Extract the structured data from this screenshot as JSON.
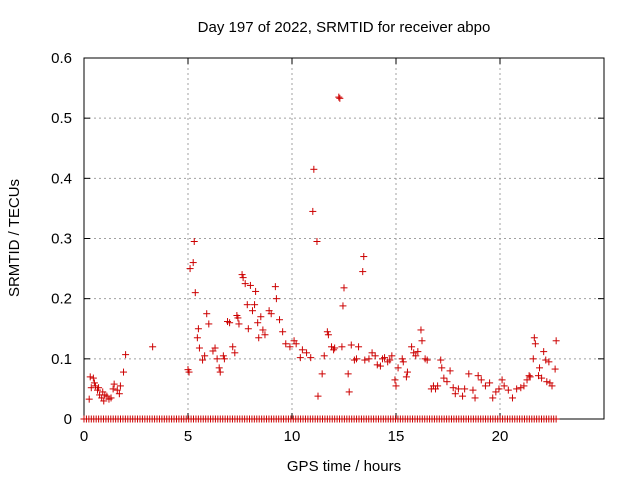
{
  "chart_data": {
    "type": "scatter",
    "title": "Day 197 of 2022, SRMTID for receiver abpo",
    "xlabel": "GPS time / hours",
    "ylabel": "SRMTID / TECUs",
    "xlim": [
      0,
      25
    ],
    "ylim": [
      0,
      0.6
    ],
    "xticks": [
      0,
      5,
      10,
      15,
      20
    ],
    "yticks": [
      0,
      0.1,
      0.2,
      0.3,
      0.4,
      0.5,
      0.6
    ],
    "xtick_labels": [
      "0",
      "5",
      "10",
      "15",
      "20"
    ],
    "ytick_labels": [
      "0",
      "0.1",
      "0.2",
      "0.3",
      "0.4",
      "0.5",
      "0.6"
    ],
    "grid": true,
    "marker": "+",
    "color": "#cc0000",
    "series": [
      {
        "name": "SRMTID",
        "points": [
          [
            0.25,
            0.033
          ],
          [
            0.3,
            0.07
          ],
          [
            0.35,
            0.052
          ],
          [
            0.45,
            0.068
          ],
          [
            0.5,
            0.06
          ],
          [
            0.55,
            0.055
          ],
          [
            0.65,
            0.048
          ],
          [
            0.7,
            0.052
          ],
          [
            0.75,
            0.04
          ],
          [
            0.85,
            0.035
          ],
          [
            0.9,
            0.045
          ],
          [
            0.95,
            0.03
          ],
          [
            1.0,
            0.04
          ],
          [
            1.1,
            0.038
          ],
          [
            1.2,
            0.033
          ],
          [
            1.3,
            0.035
          ],
          [
            1.4,
            0.05
          ],
          [
            1.45,
            0.058
          ],
          [
            1.6,
            0.048
          ],
          [
            1.7,
            0.042
          ],
          [
            1.75,
            0.055
          ],
          [
            1.9,
            0.078
          ],
          [
            2.0,
            0.107
          ],
          [
            3.3,
            0.12
          ],
          [
            5.0,
            0.082
          ],
          [
            5.05,
            0.078
          ],
          [
            5.1,
            0.25
          ],
          [
            5.25,
            0.26
          ],
          [
            5.3,
            0.295
          ],
          [
            5.35,
            0.21
          ],
          [
            5.45,
            0.135
          ],
          [
            5.5,
            0.15
          ],
          [
            5.55,
            0.118
          ],
          [
            5.7,
            0.098
          ],
          [
            5.8,
            0.105
          ],
          [
            5.9,
            0.175
          ],
          [
            6.0,
            0.158
          ],
          [
            6.2,
            0.113
          ],
          [
            6.3,
            0.118
          ],
          [
            6.4,
            0.1
          ],
          [
            6.5,
            0.085
          ],
          [
            6.55,
            0.078
          ],
          [
            6.7,
            0.105
          ],
          [
            6.75,
            0.1
          ],
          [
            6.9,
            0.162
          ],
          [
            7.0,
            0.16
          ],
          [
            7.15,
            0.12
          ],
          [
            7.25,
            0.11
          ],
          [
            7.35,
            0.172
          ],
          [
            7.4,
            0.168
          ],
          [
            7.45,
            0.158
          ],
          [
            7.6,
            0.24
          ],
          [
            7.65,
            0.235
          ],
          [
            7.75,
            0.225
          ],
          [
            7.85,
            0.19
          ],
          [
            7.9,
            0.15
          ],
          [
            8.0,
            0.222
          ],
          [
            8.1,
            0.18
          ],
          [
            8.2,
            0.19
          ],
          [
            8.25,
            0.212
          ],
          [
            8.35,
            0.16
          ],
          [
            8.4,
            0.135
          ],
          [
            8.5,
            0.17
          ],
          [
            8.6,
            0.148
          ],
          [
            8.7,
            0.14
          ],
          [
            8.9,
            0.18
          ],
          [
            9.0,
            0.175
          ],
          [
            9.2,
            0.22
          ],
          [
            9.25,
            0.2
          ],
          [
            9.4,
            0.165
          ],
          [
            9.55,
            0.145
          ],
          [
            9.7,
            0.125
          ],
          [
            9.9,
            0.12
          ],
          [
            10.1,
            0.13
          ],
          [
            10.2,
            0.125
          ],
          [
            10.4,
            0.102
          ],
          [
            10.5,
            0.115
          ],
          [
            10.7,
            0.11
          ],
          [
            10.9,
            0.102
          ],
          [
            11.0,
            0.345
          ],
          [
            11.05,
            0.415
          ],
          [
            11.2,
            0.295
          ],
          [
            11.25,
            0.038
          ],
          [
            11.45,
            0.075
          ],
          [
            11.55,
            0.105
          ],
          [
            11.7,
            0.145
          ],
          [
            11.75,
            0.14
          ],
          [
            11.9,
            0.12
          ],
          [
            12.0,
            0.115
          ],
          [
            12.05,
            0.118
          ],
          [
            12.25,
            0.535
          ],
          [
            12.3,
            0.533
          ],
          [
            12.4,
            0.12
          ],
          [
            12.45,
            0.188
          ],
          [
            12.5,
            0.218
          ],
          [
            12.7,
            0.075
          ],
          [
            12.75,
            0.045
          ],
          [
            12.85,
            0.123
          ],
          [
            13.0,
            0.098
          ],
          [
            13.1,
            0.1
          ],
          [
            13.2,
            0.12
          ],
          [
            13.4,
            0.245
          ],
          [
            13.45,
            0.27
          ],
          [
            13.5,
            0.098
          ],
          [
            13.7,
            0.1
          ],
          [
            13.85,
            0.11
          ],
          [
            14.0,
            0.105
          ],
          [
            14.1,
            0.09
          ],
          [
            14.25,
            0.088
          ],
          [
            14.35,
            0.1
          ],
          [
            14.45,
            0.102
          ],
          [
            14.6,
            0.095
          ],
          [
            14.7,
            0.098
          ],
          [
            14.8,
            0.105
          ],
          [
            14.95,
            0.065
          ],
          [
            15.0,
            0.055
          ],
          [
            15.1,
            0.085
          ],
          [
            15.3,
            0.1
          ],
          [
            15.35,
            0.095
          ],
          [
            15.5,
            0.07
          ],
          [
            15.55,
            0.078
          ],
          [
            15.75,
            0.12
          ],
          [
            15.85,
            0.11
          ],
          [
            15.95,
            0.105
          ],
          [
            16.05,
            0.112
          ],
          [
            16.2,
            0.148
          ],
          [
            16.25,
            0.13
          ],
          [
            16.4,
            0.1
          ],
          [
            16.5,
            0.098
          ],
          [
            16.7,
            0.05
          ],
          [
            16.8,
            0.055
          ],
          [
            16.9,
            0.05
          ],
          [
            17.0,
            0.055
          ],
          [
            17.15,
            0.098
          ],
          [
            17.2,
            0.085
          ],
          [
            17.3,
            0.068
          ],
          [
            17.45,
            0.062
          ],
          [
            17.6,
            0.08
          ],
          [
            17.75,
            0.052
          ],
          [
            17.85,
            0.042
          ],
          [
            18.0,
            0.05
          ],
          [
            18.2,
            0.038
          ],
          [
            18.3,
            0.05
          ],
          [
            18.5,
            0.075
          ],
          [
            18.7,
            0.048
          ],
          [
            18.8,
            0.035
          ],
          [
            18.95,
            0.072
          ],
          [
            19.1,
            0.065
          ],
          [
            19.3,
            0.055
          ],
          [
            19.5,
            0.06
          ],
          [
            19.65,
            0.035
          ],
          [
            19.8,
            0.045
          ],
          [
            19.95,
            0.05
          ],
          [
            20.1,
            0.065
          ],
          [
            20.2,
            0.055
          ],
          [
            20.4,
            0.048
          ],
          [
            20.6,
            0.035
          ],
          [
            20.8,
            0.05
          ],
          [
            21.0,
            0.052
          ],
          [
            21.15,
            0.055
          ],
          [
            21.3,
            0.065
          ],
          [
            21.4,
            0.072
          ],
          [
            21.45,
            0.07
          ],
          [
            21.6,
            0.1
          ],
          [
            21.65,
            0.135
          ],
          [
            21.7,
            0.125
          ],
          [
            21.85,
            0.072
          ],
          [
            21.9,
            0.085
          ],
          [
            22.0,
            0.068
          ],
          [
            22.1,
            0.112
          ],
          [
            22.2,
            0.098
          ],
          [
            22.25,
            0.062
          ],
          [
            22.35,
            0.095
          ],
          [
            22.4,
            0.06
          ],
          [
            22.5,
            0.055
          ],
          [
            22.65,
            0.083
          ],
          [
            22.7,
            0.13
          ]
        ],
        "zero_baseline": {
          "from": 0.0,
          "to": 22.8,
          "step": 0.117,
          "value": 0
        }
      }
    ]
  }
}
